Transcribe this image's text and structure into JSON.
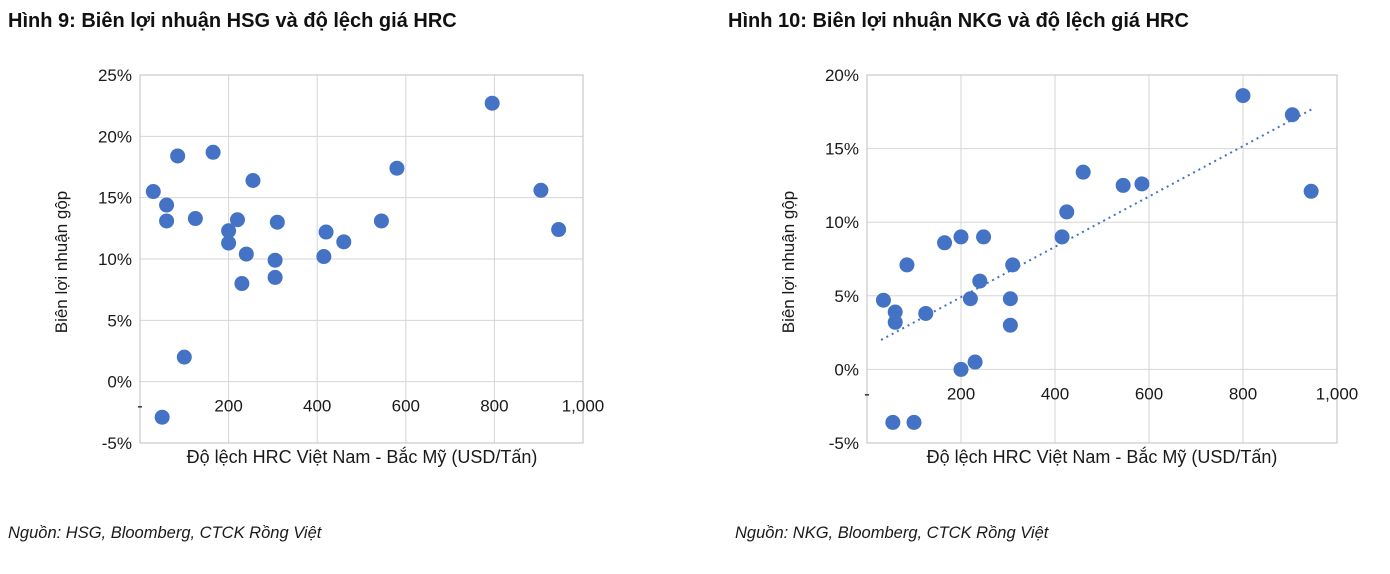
{
  "page": {
    "background": "#ffffff"
  },
  "chart_data": [
    {
      "type": "scatter",
      "title": "Hình 9: Biên lợi nhuận HSG và độ lệch giá HRC",
      "xlabel": "Độ lệch HRC Việt Nam - Bắc Mỹ (USD/Tấn)",
      "ylabel": "Biên lợi nhuận gộp",
      "source": "Nguồn: HSG, Bloomberg, CTCK Rồng Việt",
      "xlim": [
        0,
        1000
      ],
      "ylim": [
        -5,
        25
      ],
      "x_ticks": [
        {
          "value": 0,
          "label": "-"
        },
        {
          "value": 200,
          "label": "200"
        },
        {
          "value": 400,
          "label": "400"
        },
        {
          "value": 600,
          "label": "600"
        },
        {
          "value": 800,
          "label": "800"
        },
        {
          "value": 1000,
          "label": "1,000"
        }
      ],
      "y_ticks": [
        {
          "value": 25,
          "label": "25%"
        },
        {
          "value": 20,
          "label": "20%"
        },
        {
          "value": 15,
          "label": "15%"
        },
        {
          "value": 10,
          "label": "10%"
        },
        {
          "value": 5,
          "label": "5%"
        },
        {
          "value": 0,
          "label": "0%"
        },
        {
          "value": -5,
          "label": "-5%"
        }
      ],
      "grid": true,
      "legend": "none",
      "marker_color": "#4472C4",
      "grid_color": "#d6d6d6",
      "border_color": "#bfbfbf",
      "points": [
        [
          30,
          15.5
        ],
        [
          50,
          -2.9
        ],
        [
          60,
          14.4
        ],
        [
          60,
          13.1
        ],
        [
          85,
          18.4
        ],
        [
          100,
          2.0
        ],
        [
          125,
          13.3
        ],
        [
          165,
          18.7
        ],
        [
          200,
          12.3
        ],
        [
          200,
          11.3
        ],
        [
          220,
          13.2
        ],
        [
          230,
          8.0
        ],
        [
          240,
          10.4
        ],
        [
          255,
          16.4
        ],
        [
          305,
          8.5
        ],
        [
          305,
          9.9
        ],
        [
          310,
          13.0
        ],
        [
          415,
          10.2
        ],
        [
          420,
          12.2
        ],
        [
          460,
          11.4
        ],
        [
          545,
          13.1
        ],
        [
          580,
          17.4
        ],
        [
          795,
          22.7
        ],
        [
          905,
          15.6
        ],
        [
          945,
          12.4
        ]
      ]
    },
    {
      "type": "scatter",
      "title": "Hình 10: Biên lợi nhuận NKG và độ lệch giá HRC",
      "xlabel": "Độ lệch HRC Việt Nam - Bắc Mỹ (USD/Tấn)",
      "ylabel": "Biên lợi nhuận gộp",
      "source": "Nguồn: NKG, Bloomberg, CTCK Rồng Việt",
      "xlim": [
        0,
        1000
      ],
      "ylim": [
        -5,
        20
      ],
      "x_ticks": [
        {
          "value": 0,
          "label": "-"
        },
        {
          "value": 200,
          "label": "200"
        },
        {
          "value": 400,
          "label": "400"
        },
        {
          "value": 600,
          "label": "600"
        },
        {
          "value": 800,
          "label": "800"
        },
        {
          "value": 1000,
          "label": "1,000"
        }
      ],
      "y_ticks": [
        {
          "value": 20,
          "label": "20%"
        },
        {
          "value": 15,
          "label": "15%"
        },
        {
          "value": 10,
          "label": "10%"
        },
        {
          "value": 5,
          "label": "5%"
        },
        {
          "value": 0,
          "label": "0%"
        },
        {
          "value": -5,
          "label": "-5%"
        }
      ],
      "grid": true,
      "legend": "none",
      "marker_color": "#4472C4",
      "grid_color": "#d6d6d6",
      "border_color": "#bfbfbf",
      "trendline": {
        "style": "dotted",
        "color": "#4472C4",
        "x_start": 30,
        "y_start": 2.0,
        "x_end": 948,
        "y_end": 17.7
      },
      "points": [
        [
          35,
          4.7
        ],
        [
          55,
          -3.6
        ],
        [
          60,
          3.9
        ],
        [
          60,
          3.2
        ],
        [
          85,
          7.1
        ],
        [
          100,
          -3.6
        ],
        [
          125,
          3.8
        ],
        [
          165,
          8.6
        ],
        [
          200,
          0.0
        ],
        [
          200,
          9.0
        ],
        [
          220,
          4.8
        ],
        [
          230,
          0.5
        ],
        [
          240,
          6.0
        ],
        [
          248,
          9.0
        ],
        [
          305,
          4.8
        ],
        [
          305,
          3.0
        ],
        [
          310,
          7.1
        ],
        [
          415,
          9.0
        ],
        [
          425,
          10.7
        ],
        [
          460,
          13.4
        ],
        [
          545,
          12.5
        ],
        [
          585,
          12.6
        ],
        [
          800,
          18.6
        ],
        [
          905,
          17.3
        ],
        [
          945,
          12.1
        ]
      ]
    }
  ]
}
